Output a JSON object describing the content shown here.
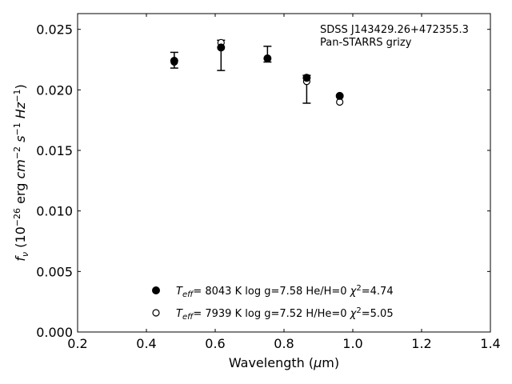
{
  "chart_data": {
    "type": "scatter",
    "xlabel": "Wavelength (μm)",
    "ylabel": "fν (10⁻²⁶ erg cm⁻² s⁻¹ Hz⁻¹)",
    "xlim": [
      0.2,
      1.4
    ],
    "ylim": [
      0.0,
      0.0263
    ],
    "xticks": [
      0.2,
      0.4,
      0.6,
      0.8,
      1.0,
      1.2,
      1.4
    ],
    "xtick_labels": [
      "0.2",
      "0.4",
      "0.6",
      "0.8",
      "1.0",
      "1.2",
      "1.4"
    ],
    "yticks": [
      0.0,
      0.005,
      0.01,
      0.015,
      0.02,
      0.025
    ],
    "ytick_labels": [
      "0.000",
      "0.005",
      "0.010",
      "0.015",
      "0.020",
      "0.025"
    ],
    "grid": false,
    "annotations": [
      "SDSS J143429.26+472355.3",
      "Pan-STARRS grizy"
    ],
    "observed": {
      "x": [
        0.481,
        0.617,
        0.752,
        0.866
      ],
      "y": [
        0.0223,
        0.0236,
        0.0226,
        0.0209
      ],
      "err_low": [
        0.0218,
        0.0216,
        0.0223,
        0.0189
      ],
      "err_high": [
        0.0231,
        0.0241,
        0.0236,
        0.0212
      ]
    },
    "series": [
      {
        "marker": "filled",
        "legend_teff": "8043 K",
        "legend_rest": "log g=7.58  He/H=0",
        "legend_chi2": "4.74",
        "x": [
          0.481,
          0.617,
          0.752,
          0.866,
          0.962
        ],
        "y": [
          0.0224,
          0.0235,
          0.0226,
          0.021,
          0.0195
        ]
      },
      {
        "marker": "open",
        "legend_teff": "7939 K",
        "legend_rest": "log g=7.52  H/He=0",
        "legend_chi2": "5.05",
        "x": [
          0.481,
          0.617,
          0.752,
          0.866,
          0.962
        ],
        "y": [
          0.0223,
          0.0239,
          0.0226,
          0.0207,
          0.019
        ]
      }
    ]
  }
}
